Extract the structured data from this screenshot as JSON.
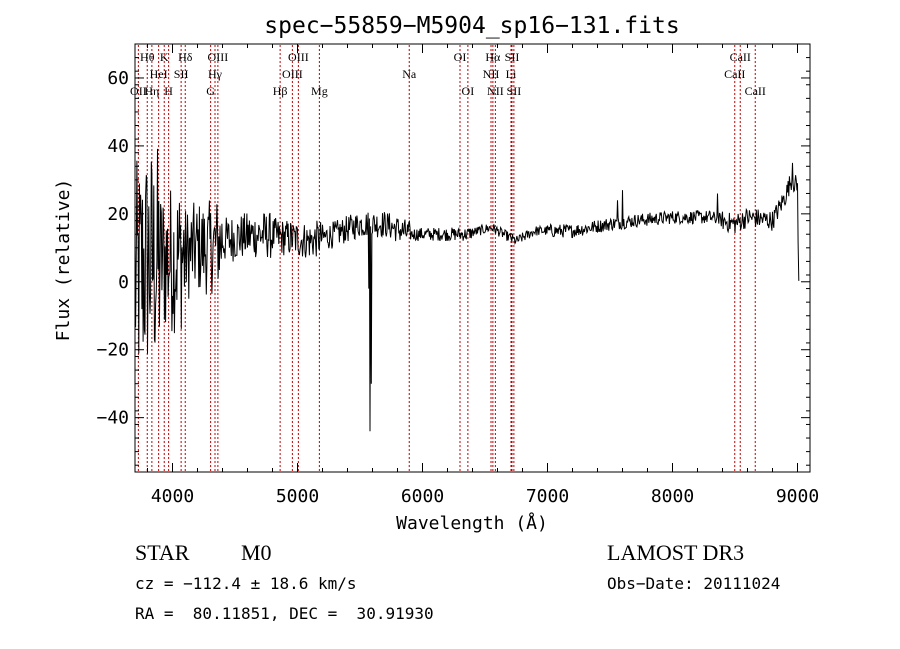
{
  "chart_data": {
    "type": "line",
    "title": "spec−55859−M5904_sp16−131.fits",
    "xlabel": "Wavelength (Å)",
    "ylabel": "Flux (relative)",
    "xlim": [
      3700,
      9100
    ],
    "ylim": [
      -56,
      70
    ],
    "xticks": [
      4000,
      5000,
      6000,
      7000,
      8000,
      9000
    ],
    "yticks": [
      -40,
      -20,
      0,
      20,
      40,
      60
    ],
    "ytick_labels": [
      "−40",
      "−20",
      "0",
      "20",
      "40",
      "60"
    ],
    "line_marker_color": "#c00000",
    "spectrum_color": "#000000",
    "lines": [
      {
        "label": "OII",
        "wave": 3727,
        "row": 3
      },
      {
        "label": "Hθ",
        "wave": 3798,
        "row": 1
      },
      {
        "label": "HeI",
        "wave": 3889,
        "row": 2
      },
      {
        "label": "Hη",
        "wave": 3835,
        "row": 3
      },
      {
        "label": "K",
        "wave": 3934,
        "row": 1
      },
      {
        "label": "SII",
        "wave": 4069,
        "row": 2
      },
      {
        "label": "H",
        "wave": 3969,
        "row": 3
      },
      {
        "label": "Hδ",
        "wave": 4102,
        "row": 1
      },
      {
        "label": "OIII",
        "wave": 4363,
        "row": 1
      },
      {
        "label": "Hγ",
        "wave": 4340,
        "row": 2
      },
      {
        "label": "G",
        "wave": 4305,
        "row": 3
      },
      {
        "label": "OIII",
        "wave": 5007,
        "row": 1
      },
      {
        "label": "OIII",
        "wave": 4959,
        "row": 2
      },
      {
        "label": "Hβ",
        "wave": 4861,
        "row": 3
      },
      {
        "label": "Mg",
        "wave": 5175,
        "row": 3
      },
      {
        "label": "Na",
        "wave": 5894,
        "row": 2
      },
      {
        "label": "OI",
        "wave": 6300,
        "row": 1
      },
      {
        "label": "OI",
        "wave": 6363,
        "row": 3
      },
      {
        "label": "Hα",
        "wave": 6563,
        "row": 1
      },
      {
        "label": "SII",
        "wave": 6716,
        "row": 1
      },
      {
        "label": "NII",
        "wave": 6548,
        "row": 2
      },
      {
        "label": "Li",
        "wave": 6708,
        "row": 2
      },
      {
        "label": "NII",
        "wave": 6583,
        "row": 3
      },
      {
        "label": "SII",
        "wave": 6731,
        "row": 3
      },
      {
        "label": "CaII",
        "wave": 8542,
        "row": 1
      },
      {
        "label": "CaII",
        "wave": 8498,
        "row": 2
      },
      {
        "label": "CaII",
        "wave": 8662,
        "row": 3
      }
    ],
    "continuum_nodes": [
      [
        3700,
        0
      ],
      [
        3800,
        6
      ],
      [
        3900,
        6
      ],
      [
        4000,
        7
      ],
      [
        4100,
        8
      ],
      [
        4200,
        10
      ],
      [
        4300,
        10
      ],
      [
        4400,
        12
      ],
      [
        4500,
        13
      ],
      [
        4700,
        14
      ],
      [
        4900,
        13
      ],
      [
        5100,
        12
      ],
      [
        5300,
        14
      ],
      [
        5500,
        17
      ],
      [
        5700,
        17
      ],
      [
        5900,
        14
      ],
      [
        6000,
        14
      ],
      [
        6200,
        14
      ],
      [
        6350,
        14
      ],
      [
        6550,
        16
      ],
      [
        6700,
        13
      ],
      [
        6750,
        12
      ],
      [
        6900,
        15
      ],
      [
        7200,
        15
      ],
      [
        7500,
        17
      ],
      [
        7700,
        18
      ],
      [
        8000,
        19
      ],
      [
        8300,
        19
      ],
      [
        8500,
        17
      ],
      [
        8600,
        19
      ],
      [
        8800,
        18
      ],
      [
        8900,
        25
      ],
      [
        8950,
        30
      ],
      [
        9000,
        28
      ],
      [
        9010,
        0
      ]
    ],
    "spikes": [
      {
        "wave": 5580,
        "value": -44
      },
      {
        "wave": 5590,
        "value": -30
      },
      {
        "wave": 5570,
        "value": -2
      },
      {
        "wave": 7600,
        "value": 27
      },
      {
        "wave": 7560,
        "value": 24
      },
      {
        "wave": 8360,
        "value": 26
      },
      {
        "wave": 8960,
        "value": 35
      }
    ]
  },
  "info": {
    "object_class": "STAR",
    "subclass": "M0",
    "survey": "LAMOST DR3",
    "cz": "cz = −112.4 ± 18.6 km/s",
    "obs_date": "Obs−Date: 20111024",
    "coords": "RA =  80.11851, DEC =  30.91930"
  }
}
